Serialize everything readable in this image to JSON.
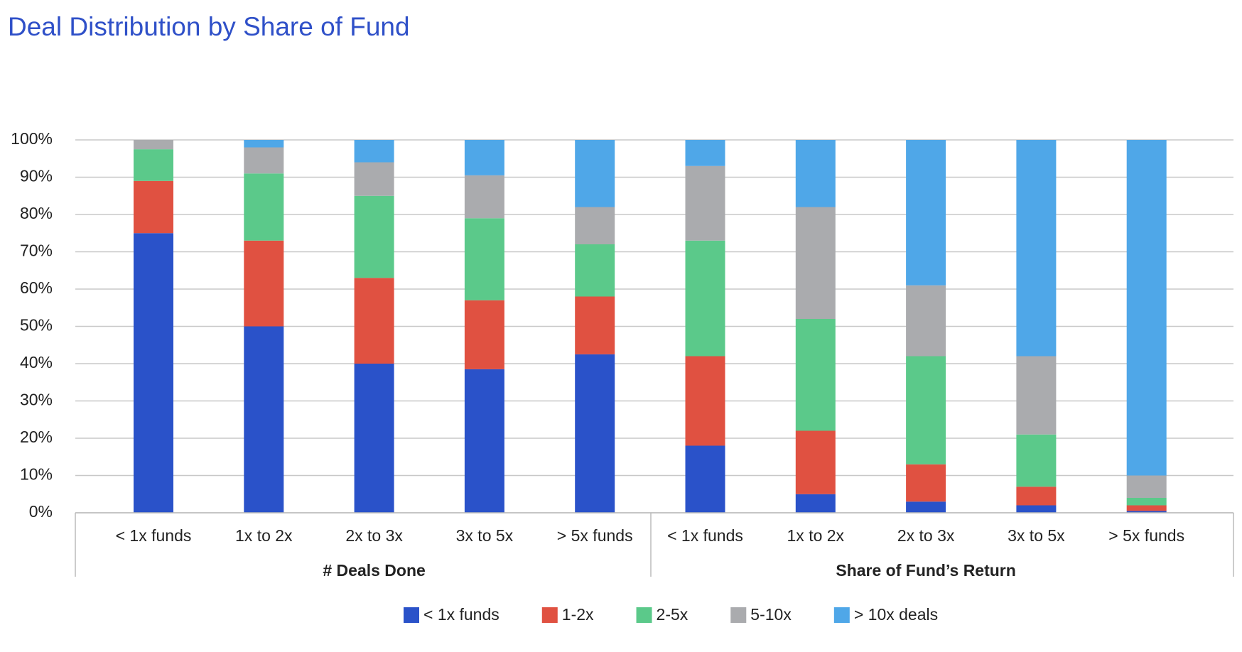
{
  "chart_data": {
    "type": "stacked_bar",
    "title": "Deal Distribution by Share of Fund",
    "groups": [
      {
        "label": "# Deals Done",
        "categories": [
          "< 1x funds",
          "1x to 2x",
          "2x to 3x",
          "3x to 5x",
          "> 5x funds"
        ]
      },
      {
        "label": "Share of Fund’s Return",
        "categories": [
          "< 1x funds",
          "1x to 2x",
          "2x to 3x",
          "3x to 5x",
          "> 5x funds"
        ]
      }
    ],
    "series": [
      {
        "name": "< 1x funds",
        "color": "#2a52c9",
        "values": [
          75,
          50,
          40,
          38.5,
          42.5,
          18,
          5,
          3,
          2,
          0.5
        ]
      },
      {
        "name": "1-2x",
        "color": "#e05141",
        "values": [
          14,
          23,
          23,
          18.5,
          15.5,
          24,
          17,
          10,
          5,
          1.5
        ]
      },
      {
        "name": "2-5x",
        "color": "#5bc98a",
        "values": [
          8.5,
          18,
          22,
          22,
          14,
          31,
          30,
          29,
          14,
          2
        ]
      },
      {
        "name": "5-10x",
        "color": "#aaabae",
        "values": [
          2.5,
          7,
          9,
          11.5,
          10,
          20,
          30,
          19,
          21,
          6
        ]
      },
      {
        "name": "> 10x deals",
        "color": "#4fa7e8",
        "values": [
          0,
          2,
          6,
          9.5,
          18,
          7,
          18,
          39,
          58,
          90
        ]
      }
    ],
    "ylim": [
      0,
      100
    ],
    "yticks": [
      {
        "value": 0,
        "label": "0%"
      },
      {
        "value": 10,
        "label": "10%"
      },
      {
        "value": 20,
        "label": "20%"
      },
      {
        "value": 30,
        "label": "30%"
      },
      {
        "value": 40,
        "label": "40%"
      },
      {
        "value": 50,
        "label": "50%"
      },
      {
        "value": 60,
        "label": "60%"
      },
      {
        "value": 70,
        "label": "70%"
      },
      {
        "value": 80,
        "label": "80%"
      },
      {
        "value": 90,
        "label": "90%"
      },
      {
        "value": 100,
        "label": "100%"
      }
    ],
    "grid": true
  }
}
